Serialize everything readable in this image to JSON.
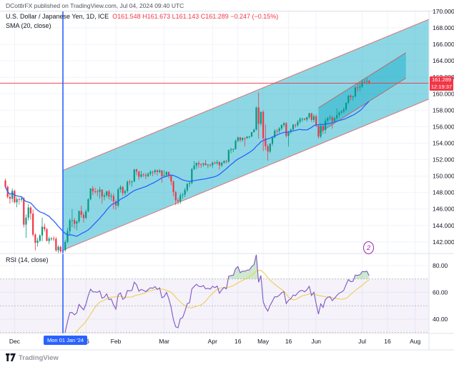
{
  "attribution": "DCottlrFX published on TradingView.com, Jul 04, 2024 09:40 UTC",
  "legend": {
    "symbol": "U.S. Dollar / Japanese Yen, 1D, ICE",
    "ohlc": "O161.548  H161.673  L161.143  C161.289  −0.247 (−0.15%)",
    "sma_label": "SMA (20, close)",
    "rsi_label": "RSI (14, close)"
  },
  "price_axis": {
    "ticks": [
      170,
      168,
      166,
      164,
      162,
      160,
      158,
      156,
      154,
      152,
      150,
      148,
      146,
      144,
      142
    ],
    "last_price": "161.289",
    "countdown": "12:19:37"
  },
  "rsi_axis": {
    "ticks": [
      80,
      60,
      40
    ]
  },
  "time_axis": {
    "ticks": [
      {
        "label": "Dec",
        "i": 4
      },
      {
        "label": "16",
        "i": 35
      },
      {
        "label": "Feb",
        "i": 48
      },
      {
        "label": "Mar",
        "i": 69
      },
      {
        "label": "Apr",
        "i": 90
      },
      {
        "label": "16",
        "i": 101
      },
      {
        "label": "May",
        "i": 112
      },
      {
        "label": "16",
        "i": 123
      },
      {
        "label": "Jun",
        "i": 135
      },
      {
        "label": "Jul",
        "i": 155
      },
      {
        "label": "16",
        "i": 166
      },
      {
        "label": "Aug",
        "i": 178
      }
    ],
    "highlight_label": "Mon 01 Jan '24",
    "highlight_index": 25
  },
  "marker": {
    "label": "2"
  },
  "footer": {
    "brand": "TradingView"
  },
  "colors": {
    "up": "#089981",
    "down": "#f23645",
    "sma": "#2962ff",
    "vline": "#2962ff",
    "price_line": "#f23645",
    "grid": "#f0f3fa",
    "separator": "#e0e3eb",
    "rsi": "#7e57c2",
    "rsi_ma": "#f0d060",
    "rsi_band": "rgba(126,87,194,0.08)",
    "rsi_level": "rgba(120,123,134,0.6)",
    "over70_fill": "rgba(76,175,80,0.28)",
    "under30_fill": "rgba(242,54,69,0.22)",
    "channel_fill": "rgba(27,175,202,0.5)",
    "channel_stroke": "rgba(229,57,53,0.65)"
  },
  "chart_data": {
    "type": "candlestick",
    "title": "U.S. Dollar / Japanese Yen, 1D, ICE",
    "price_range": [
      140.6,
      170.0
    ],
    "rsi_settings": {
      "period": 14,
      "ma_period": 14,
      "levels": [
        70,
        50,
        30
      ]
    },
    "sma_period": 20,
    "price_line_value": 161.289,
    "vline_index": 25,
    "channels": [
      {
        "name": "primary-channel",
        "i1": 25,
        "i2": 184,
        "bottom1": 141.0,
        "bottom2": 159.35,
        "width": 9.7
      },
      {
        "name": "inner-channel",
        "i1": 136,
        "i2": 174,
        "bottom1": 155.2,
        "bottom2": 161.9,
        "width": 3.1
      }
    ],
    "candles": [
      [
        149.45,
        149.68,
        148.55,
        148.7
      ],
      [
        148.7,
        148.85,
        147.3,
        147.48
      ],
      [
        147.48,
        147.9,
        146.65,
        147.24
      ],
      [
        147.24,
        148.5,
        146.8,
        148.2
      ],
      [
        148.2,
        148.35,
        146.65,
        146.82
      ],
      [
        146.82,
        147.45,
        146.2,
        147.2
      ],
      [
        147.2,
        147.4,
        146.55,
        147.14
      ],
      [
        147.14,
        147.55,
        146.85,
        147.3
      ],
      [
        147.3,
        147.45,
        143.75,
        144.1
      ],
      [
        144.1,
        145.35,
        142.5,
        144.95
      ],
      [
        144.95,
        146.58,
        144.6,
        146.18
      ],
      [
        146.18,
        146.35,
        144.7,
        145.45
      ],
      [
        145.45,
        145.95,
        142.65,
        142.88
      ],
      [
        142.88,
        143.05,
        140.97,
        141.9
      ],
      [
        141.9,
        142.5,
        141.45,
        142.15
      ],
      [
        142.15,
        142.95,
        142.0,
        142.78
      ],
      [
        142.78,
        144.95,
        142.1,
        143.85
      ],
      [
        143.85,
        144.25,
        143.25,
        143.55
      ],
      [
        143.55,
        143.7,
        142.1,
        142.12
      ],
      [
        142.12,
        142.65,
        141.75,
        142.4
      ],
      [
        142.4,
        142.6,
        142.15,
        142.42
      ],
      [
        142.42,
        142.7,
        142.1,
        142.38
      ],
      [
        142.38,
        142.6,
        140.8,
        140.98
      ],
      [
        140.98,
        141.6,
        140.25,
        141.4
      ],
      [
        141.4,
        141.55,
        140.6,
        140.85
      ],
      [
        140.85,
        141.15,
        140.8,
        141.0
      ],
      [
        141.0,
        142.21,
        140.82,
        142.0
      ],
      [
        142.0,
        143.73,
        141.85,
        143.3
      ],
      [
        143.3,
        144.85,
        142.85,
        144.63
      ],
      [
        144.63,
        145.98,
        143.8,
        144.65
      ],
      [
        144.65,
        144.92,
        143.65,
        144.22
      ],
      [
        144.22,
        144.62,
        143.42,
        144.48
      ],
      [
        144.48,
        145.83,
        144.3,
        145.75
      ],
      [
        145.75,
        146.41,
        144.95,
        145.3
      ],
      [
        145.3,
        145.56,
        144.35,
        144.9
      ],
      [
        144.9,
        145.93,
        144.82,
        145.73
      ],
      [
        145.73,
        147.31,
        145.6,
        147.18
      ],
      [
        147.18,
        148.52,
        147.05,
        148.5
      ],
      [
        148.5,
        148.8,
        147.65,
        148.15
      ],
      [
        148.15,
        148.58,
        147.85,
        148.14
      ],
      [
        148.14,
        148.4,
        147.55,
        148.1
      ],
      [
        148.1,
        148.7,
        147.25,
        148.35
      ],
      [
        148.35,
        148.4,
        146.65,
        147.5
      ],
      [
        147.5,
        147.95,
        147.05,
        147.65
      ],
      [
        147.65,
        148.2,
        147.4,
        148.15
      ],
      [
        148.15,
        148.33,
        147.15,
        147.5
      ],
      [
        147.5,
        147.91,
        147.0,
        147.6
      ],
      [
        147.6,
        147.9,
        146.0,
        146.92
      ],
      [
        146.92,
        147.15,
        145.89,
        146.42
      ],
      [
        146.42,
        148.58,
        146.2,
        148.38
      ],
      [
        148.38,
        148.89,
        148.0,
        148.68
      ],
      [
        148.68,
        148.8,
        147.6,
        147.93
      ],
      [
        147.93,
        148.35,
        147.65,
        148.18
      ],
      [
        148.18,
        149.48,
        147.95,
        149.32
      ],
      [
        149.32,
        149.57,
        148.9,
        149.28
      ],
      [
        149.28,
        149.45,
        148.7,
        149.35
      ],
      [
        149.35,
        150.88,
        149.25,
        150.8
      ],
      [
        150.8,
        150.9,
        150.1,
        150.55
      ],
      [
        150.55,
        150.6,
        149.55,
        149.92
      ],
      [
        149.92,
        150.65,
        149.8,
        150.2
      ],
      [
        150.2,
        150.35,
        149.9,
        150.12
      ],
      [
        150.12,
        150.4,
        149.65,
        150.0
      ],
      [
        150.0,
        150.45,
        149.85,
        150.28
      ],
      [
        150.28,
        150.7,
        150.05,
        150.52
      ],
      [
        150.52,
        150.66,
        150.0,
        150.48
      ],
      [
        150.48,
        150.84,
        150.2,
        150.7
      ],
      [
        150.7,
        150.8,
        150.05,
        150.5
      ],
      [
        150.5,
        150.85,
        150.35,
        150.68
      ],
      [
        150.68,
        150.75,
        149.2,
        149.98
      ],
      [
        149.98,
        150.7,
        149.85,
        150.1
      ],
      [
        150.1,
        150.58,
        150.0,
        150.5
      ],
      [
        150.5,
        150.55,
        149.7,
        150.05
      ],
      [
        150.05,
        150.1,
        148.9,
        149.35
      ],
      [
        149.35,
        149.45,
        147.55,
        148.05
      ],
      [
        148.05,
        148.2,
        146.48,
        147.06
      ],
      [
        147.06,
        147.35,
        146.55,
        146.92
      ],
      [
        146.92,
        147.95,
        146.62,
        147.65
      ],
      [
        147.65,
        147.95,
        147.25,
        147.75
      ],
      [
        147.75,
        148.55,
        147.45,
        148.3
      ],
      [
        148.3,
        149.15,
        148.05,
        149.05
      ],
      [
        149.05,
        149.3,
        148.65,
        149.15
      ],
      [
        149.15,
        150.96,
        149.0,
        150.86
      ],
      [
        150.86,
        151.82,
        150.7,
        151.25
      ],
      [
        151.25,
        151.65,
        150.85,
        151.6
      ],
      [
        151.6,
        151.85,
        151.0,
        151.43
      ],
      [
        151.43,
        151.55,
        151.0,
        151.4
      ],
      [
        151.4,
        151.6,
        151.15,
        151.55
      ],
      [
        151.55,
        151.97,
        151.3,
        151.32
      ],
      [
        151.32,
        151.45,
        150.95,
        151.38
      ],
      [
        151.38,
        151.5,
        151.12,
        151.33
      ],
      [
        151.33,
        151.75,
        151.0,
        151.63
      ],
      [
        151.63,
        151.78,
        151.45,
        151.55
      ],
      [
        151.55,
        151.95,
        151.4,
        151.7
      ],
      [
        151.7,
        151.8,
        150.8,
        151.3
      ],
      [
        151.3,
        151.75,
        151.1,
        151.6
      ],
      [
        151.6,
        151.92,
        151.5,
        151.83
      ],
      [
        151.83,
        151.95,
        151.55,
        151.75
      ],
      [
        151.75,
        153.24,
        151.6,
        153.15
      ],
      [
        153.15,
        153.45,
        152.75,
        153.25
      ],
      [
        153.25,
        153.38,
        152.9,
        153.28
      ],
      [
        153.28,
        154.45,
        153.2,
        154.27
      ],
      [
        154.27,
        154.79,
        154.15,
        154.7
      ],
      [
        154.7,
        154.75,
        154.15,
        154.38
      ],
      [
        154.38,
        154.7,
        154.18,
        154.63
      ],
      [
        154.63,
        154.7,
        153.6,
        154.62
      ],
      [
        154.62,
        154.87,
        154.5,
        154.8
      ],
      [
        154.8,
        154.88,
        154.55,
        154.82
      ],
      [
        154.82,
        155.37,
        154.7,
        155.33
      ],
      [
        155.33,
        155.75,
        155.3,
        155.65
      ],
      [
        155.65,
        158.44,
        155.55,
        158.33
      ],
      [
        158.33,
        160.17,
        154.55,
        156.35
      ],
      [
        156.35,
        157.85,
        156.1,
        157.8
      ],
      [
        157.8,
        157.98,
        153.04,
        154.6
      ],
      [
        154.6,
        156.28,
        153.15,
        153.64
      ],
      [
        153.64,
        153.85,
        151.86,
        152.98
      ],
      [
        152.98,
        154.01,
        152.8,
        153.92
      ],
      [
        153.92,
        154.75,
        153.65,
        154.68
      ],
      [
        154.68,
        155.7,
        154.6,
        155.5
      ],
      [
        155.5,
        155.72,
        155.15,
        155.48
      ],
      [
        155.48,
        155.95,
        155.25,
        155.78
      ],
      [
        155.78,
        156.3,
        155.55,
        156.21
      ],
      [
        156.21,
        156.57,
        155.95,
        156.42
      ],
      [
        156.42,
        156.55,
        154.7,
        154.88
      ],
      [
        154.88,
        155.51,
        153.6,
        155.4
      ],
      [
        155.4,
        155.8,
        155.15,
        155.65
      ],
      [
        155.65,
        156.32,
        155.5,
        156.24
      ],
      [
        156.24,
        156.35,
        155.85,
        156.17
      ],
      [
        156.17,
        156.82,
        156.0,
        156.6
      ],
      [
        156.6,
        157.15,
        156.35,
        156.94
      ],
      [
        156.94,
        157.1,
        156.58,
        156.98
      ],
      [
        156.98,
        157.05,
        156.75,
        156.86
      ],
      [
        156.86,
        157.2,
        156.6,
        157.16
      ],
      [
        157.16,
        157.7,
        156.95,
        157.62
      ],
      [
        157.62,
        157.7,
        156.6,
        156.82
      ],
      [
        156.82,
        157.53,
        156.55,
        157.26
      ],
      [
        157.26,
        157.48,
        155.95,
        156.1
      ],
      [
        156.1,
        156.2,
        154.55,
        154.8
      ],
      [
        154.8,
        156.35,
        154.6,
        156.08
      ],
      [
        156.08,
        156.2,
        155.1,
        155.6
      ],
      [
        155.6,
        157.0,
        155.15,
        156.72
      ],
      [
        156.72,
        157.18,
        156.55,
        157.04
      ],
      [
        157.04,
        157.4,
        156.8,
        157.14
      ],
      [
        157.14,
        157.32,
        155.75,
        156.7
      ],
      [
        156.7,
        157.2,
        156.55,
        157.03
      ],
      [
        157.03,
        158.25,
        156.8,
        157.4
      ],
      [
        157.4,
        157.85,
        157.1,
        157.72
      ],
      [
        157.72,
        158.0,
        157.55,
        157.85
      ],
      [
        157.85,
        158.35,
        157.65,
        158.1
      ],
      [
        158.1,
        158.95,
        157.9,
        158.92
      ],
      [
        158.92,
        159.84,
        158.7,
        159.77
      ],
      [
        159.77,
        159.94,
        159.2,
        159.6
      ],
      [
        159.6,
        159.78,
        159.15,
        159.67
      ],
      [
        159.67,
        160.87,
        159.55,
        160.77
      ],
      [
        160.77,
        161.27,
        160.25,
        160.75
      ],
      [
        160.75,
        161.28,
        160.3,
        160.86
      ],
      [
        160.86,
        161.74,
        160.7,
        161.45
      ],
      [
        161.45,
        161.75,
        161.25,
        161.44
      ],
      [
        161.44,
        161.95,
        161.15,
        161.54
      ],
      [
        161.548,
        161.673,
        161.143,
        161.289
      ]
    ]
  }
}
